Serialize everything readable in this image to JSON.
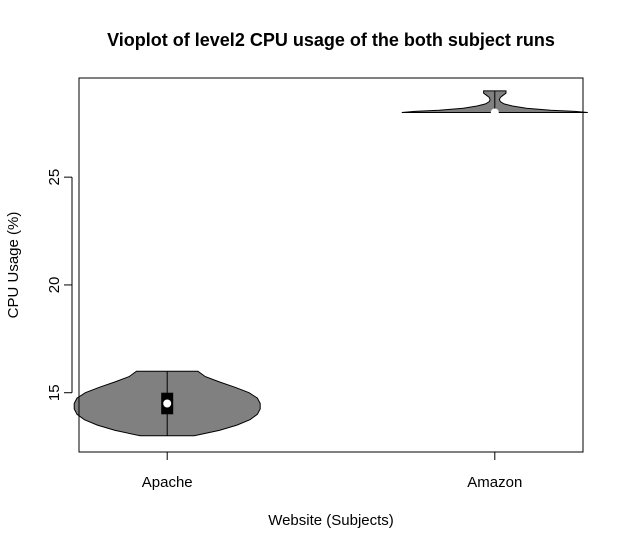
{
  "chart_data": {
    "type": "violin",
    "title": "Vioplot of level2 CPU usage of the both subject runs",
    "xlabel": "Website (Subjects)",
    "ylabel": "CPU Usage (%)",
    "categories": [
      "Apache",
      "Amazon"
    ],
    "ylim": [
      12.25,
      29.6
    ],
    "yticks": [
      15,
      20,
      25
    ],
    "ytick_labels": [
      "15",
      "20",
      "25"
    ],
    "fill_color": "#808080",
    "box_color": "#000000",
    "median_color": "#ffffff",
    "grid": false,
    "legend": "none",
    "series": [
      {
        "category": "Apache",
        "min": 13,
        "q1": 14,
        "median": 14.5,
        "q3": 15,
        "max": 16,
        "density": [
          {
            "y": 13.0,
            "hw": 0.29
          },
          {
            "y": 13.25,
            "hw": 0.56
          },
          {
            "y": 13.5,
            "hw": 0.75
          },
          {
            "y": 13.75,
            "hw": 0.89
          },
          {
            "y": 14.0,
            "hw": 0.97
          },
          {
            "y": 14.25,
            "hw": 1.0
          },
          {
            "y": 14.5,
            "hw": 1.0
          },
          {
            "y": 14.75,
            "hw": 0.97
          },
          {
            "y": 15.0,
            "hw": 0.88
          },
          {
            "y": 15.25,
            "hw": 0.73
          },
          {
            "y": 15.5,
            "hw": 0.56
          },
          {
            "y": 15.75,
            "hw": 0.41
          },
          {
            "y": 16.0,
            "hw": 0.33
          }
        ]
      },
      {
        "category": "Amazon",
        "min": 28,
        "q1": 28,
        "median": 28,
        "q3": 28,
        "max": 29,
        "density": [
          {
            "y": 28.0,
            "hw": 1.0
          },
          {
            "y": 28.05,
            "hw": 0.86
          },
          {
            "y": 28.1,
            "hw": 0.6
          },
          {
            "y": 28.2,
            "hw": 0.34
          },
          {
            "y": 28.3,
            "hw": 0.19
          },
          {
            "y": 28.4,
            "hw": 0.1
          },
          {
            "y": 28.5,
            "hw": 0.06
          },
          {
            "y": 28.6,
            "hw": 0.05
          },
          {
            "y": 28.7,
            "hw": 0.06
          },
          {
            "y": 28.8,
            "hw": 0.09
          },
          {
            "y": 28.9,
            "hw": 0.12
          },
          {
            "y": 29.0,
            "hw": 0.12
          }
        ]
      }
    ]
  }
}
